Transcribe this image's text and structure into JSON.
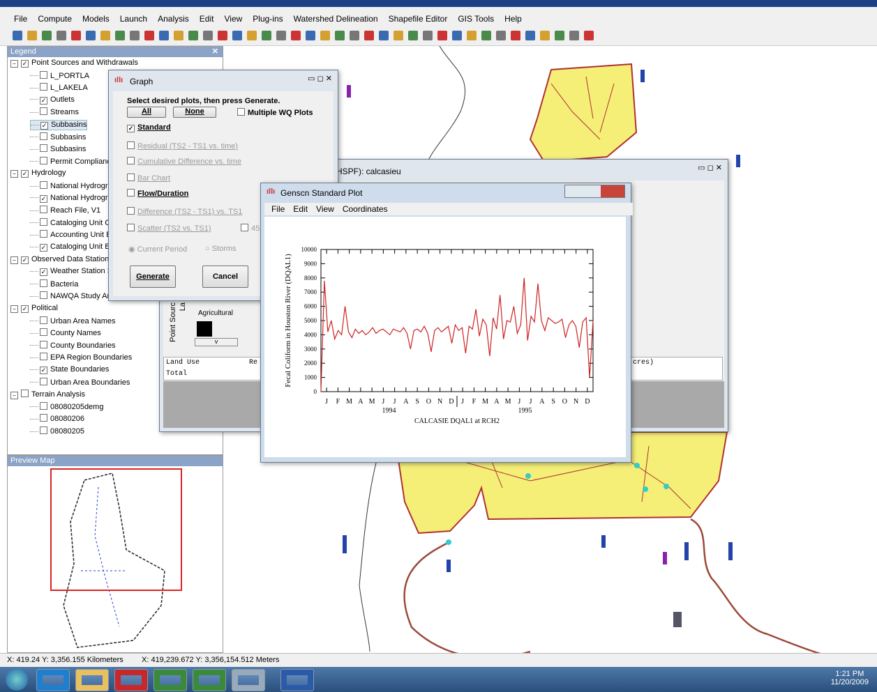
{
  "menu": [
    "File",
    "Compute",
    "Models",
    "Launch",
    "Analysis",
    "Edit",
    "View",
    "Plug-ins",
    "Watershed Delineation",
    "Shapefile Editor",
    "GIS Tools",
    "Help"
  ],
  "legend": {
    "title": "Legend",
    "groups": [
      {
        "name": "Point Sources and Withdrawals",
        "checked": true,
        "items": [
          {
            "label": "L_PORTLA",
            "checked": false
          },
          {
            "label": "L_LAKELA",
            "checked": false
          },
          {
            "label": "Outlets",
            "checked": true
          },
          {
            "label": "Streams",
            "checked": false
          },
          {
            "label": "Subbasins",
            "checked": true
          },
          {
            "label": "Subbasins",
            "checked": false
          },
          {
            "label": "Subbasins",
            "checked": false
          },
          {
            "label": "Permit Compliance S",
            "checked": false
          }
        ]
      },
      {
        "name": "Hydrology",
        "checked": true,
        "items": [
          {
            "label": "National Hydrograp",
            "checked": false
          },
          {
            "label": "National Hydrograp",
            "checked": true
          },
          {
            "label": "Reach File, V1",
            "checked": false
          },
          {
            "label": "Cataloging Unit Cod",
            "checked": false
          },
          {
            "label": "Accounting Unit Bou",
            "checked": false
          },
          {
            "label": "Cataloging Unit Bou",
            "checked": true
          }
        ]
      },
      {
        "name": "Observed Data Stations",
        "checked": true,
        "items": [
          {
            "label": "Weather Station Site",
            "checked": true
          },
          {
            "label": "Bacteria",
            "checked": false
          },
          {
            "label": "NAWQA Study Area Unit Boundari",
            "checked": false
          }
        ]
      },
      {
        "name": "Political",
        "checked": true,
        "items": [
          {
            "label": "Urban Area Names",
            "checked": false
          },
          {
            "label": "County Names",
            "checked": false
          },
          {
            "label": "County Boundaries",
            "checked": false
          },
          {
            "label": "EPA Region Boundaries",
            "checked": false
          },
          {
            "label": "State Boundaries",
            "checked": true
          },
          {
            "label": "Urban Area Boundaries",
            "checked": false
          }
        ]
      },
      {
        "name": "Terrain Analysis",
        "checked": false,
        "items": [
          {
            "label": "08080205demg",
            "checked": false
          },
          {
            "label": "08080206",
            "checked": false
          },
          {
            "label": "08080205",
            "checked": false
          }
        ]
      }
    ]
  },
  "preview_map": {
    "title": "Preview Map"
  },
  "graph_dialog": {
    "title": "Graph",
    "instruction": "Select desired plots, then press Generate.",
    "all": "All",
    "none": "None",
    "multiple": "Multiple WQ Plots",
    "options": [
      {
        "label": "Standard",
        "checked": true,
        "enabled": true
      },
      {
        "label": "Residual (TS2 - TS1 vs. time)",
        "checked": false,
        "enabled": false
      },
      {
        "label": "Cumulative Difference vs. time",
        "checked": false,
        "enabled": false
      },
      {
        "label": "Bar Chart",
        "checked": false,
        "enabled": false
      },
      {
        "label": "Flow/Duration",
        "checked": false,
        "enabled": true
      },
      {
        "label": "Difference (TS2 - TS1) vs. TS1",
        "checked": false,
        "enabled": false
      },
      {
        "label": "Scatter (TS2  vs.  TS1)",
        "checked": false,
        "enabled": false
      }
    ],
    "scatter_extra": "45",
    "radio_current": "Current Period",
    "radio_storms": "Storms",
    "generate": "Generate",
    "cancel": "Cancel"
  },
  "hspf_window": {
    "title": "HSPF): calcasieu",
    "tab": "Point Sourc",
    "tab2": "La",
    "swatch_label": "Agricultural",
    "dropdown": "v",
    "col_land_use": "Land Use",
    "col_re": "Re",
    "col_acres": "cres)",
    "total": "Total"
  },
  "plot_window": {
    "title": "Genscn Standard Plot",
    "menu": [
      "File",
      "Edit",
      "View",
      "Coordinates"
    ],
    "chart": {
      "type": "line",
      "ylabel": "Fecal Coliform in Houston River (DQAL1)",
      "caption": "CALCASIE DQAL1 at RCH2",
      "months": [
        "J",
        "F",
        "M",
        "A",
        "M",
        "J",
        "J",
        "A",
        "S",
        "O",
        "N",
        "D",
        "J",
        "F",
        "M",
        "A",
        "M",
        "J",
        "J",
        "A",
        "S",
        "O",
        "N",
        "D"
      ],
      "years": [
        "1994",
        "1995"
      ],
      "ylim": [
        0,
        10000
      ],
      "yticks": [
        0,
        1000,
        2000,
        3000,
        4000,
        5000,
        6000,
        7000,
        8000,
        9000,
        10000
      ],
      "color": "#cc2222",
      "values": [
        0,
        7800,
        4200,
        5000,
        3700,
        4300,
        4000,
        6000,
        4200,
        3800,
        4400,
        4100,
        4300,
        4000,
        4200,
        4500,
        4100,
        4300,
        4400,
        4200,
        4000,
        4400,
        4300,
        4200,
        4500,
        4100,
        3000,
        4300,
        4400,
        4200,
        4600,
        4100,
        2800,
        4300,
        4500,
        4200,
        4400,
        4600,
        3400,
        4700,
        4300,
        4500,
        2700,
        4600,
        4400,
        5800,
        3900,
        5100,
        4700,
        2500,
        5200,
        4400,
        6800,
        3700,
        5000,
        4900,
        6000,
        4100,
        4700,
        8000,
        3600,
        5300,
        4900,
        7600,
        5000,
        4300,
        5200,
        5000,
        4800,
        4900,
        5100,
        3800,
        4700,
        5000,
        4600,
        3100,
        4900,
        5200,
        1000,
        5000
      ]
    }
  },
  "status": [
    "X: 419.24  Y: 3,356.155 Kilometers",
    "X: 419,239.672  Y: 3,356,154.512 Meters"
  ],
  "taskbar": {
    "time": "1:21 PM",
    "date": "11/20/2009"
  }
}
